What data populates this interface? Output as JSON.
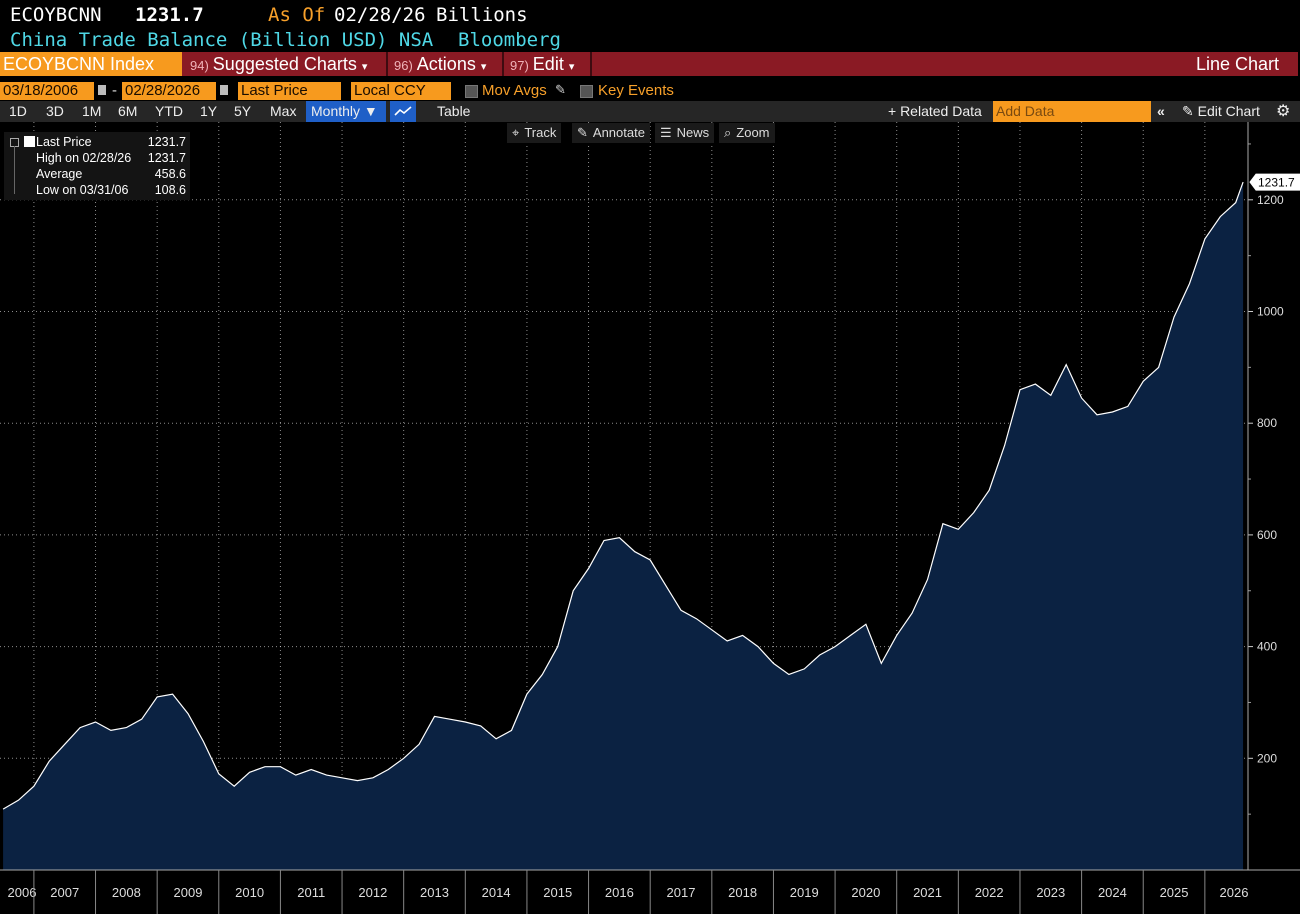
{
  "header": {
    "ticker": "ECOYBCNN",
    "price": "1231.7",
    "as_of_label": "As Of",
    "as_of_date": "02/28/26",
    "units": "Billions",
    "description": "China Trade Balance (Billion USD) NSA",
    "source": "Bloomberg"
  },
  "toolbar": {
    "security": "ECOYBCNN Index",
    "suggested_num": "94)",
    "suggested_label": "Suggested Charts",
    "actions_num": "96)",
    "actions_label": "Actions",
    "edit_num": "97)",
    "edit_label": "Edit",
    "chart_type": "Line Chart"
  },
  "controls": {
    "start_date": "03/18/2006",
    "end_date": "02/28/2026",
    "field": "Last Price",
    "currency": "Local CCY",
    "mov_avgs": "Mov Avgs",
    "key_events": "Key Events"
  },
  "periods": [
    "1D",
    "3D",
    "1M",
    "6M",
    "YTD",
    "1Y",
    "5Y",
    "Max"
  ],
  "frequency": "Monthly ▼",
  "table_label": "Table",
  "related_data": "+ Related Data",
  "add_data_placeholder": "Add Data",
  "edit_chart": "Edit Chart",
  "tools": {
    "track": "Track",
    "annotate": "Annotate",
    "news": "News",
    "zoom": "Zoom"
  },
  "legend": {
    "rows": [
      {
        "label": "Last Price",
        "value": "1231.7"
      },
      {
        "label": "High on 02/28/26",
        "value": "1231.7"
      },
      {
        "label": "Average",
        "value": "458.6"
      },
      {
        "label": "Low on 03/31/06",
        "value": "108.6"
      }
    ]
  },
  "colors": {
    "background": "#000000",
    "area_fill": "#0b2242",
    "line": "#ffffff",
    "accent_orange": "#f79a1e",
    "toolbar_red": "#8a1a24",
    "cyan": "#4fd8e6",
    "active_blue": "#1f5fc7"
  },
  "chart_data": {
    "type": "area",
    "title": "China Trade Balance (Billion USD) NSA",
    "xlabel": "",
    "ylabel": "",
    "ylim": [
      0,
      1300
    ],
    "yticks": [
      200,
      400,
      600,
      800,
      1000,
      1200
    ],
    "x_tick_labels": [
      "2006",
      "2007",
      "2008",
      "2009",
      "2010",
      "2011",
      "2012",
      "2013",
      "2014",
      "2015",
      "2016",
      "2017",
      "2018",
      "2019",
      "2020",
      "2021",
      "2022",
      "2023",
      "2024",
      "2025",
      "2026"
    ],
    "grid": true,
    "last_value_label": "1231.7",
    "series": [
      {
        "name": "Last Price",
        "x": [
          2006.0,
          2006.25,
          2006.5,
          2006.75,
          2007.0,
          2007.25,
          2007.5,
          2007.75,
          2008.0,
          2008.25,
          2008.5,
          2008.75,
          2009.0,
          2009.25,
          2009.5,
          2009.75,
          2010.0,
          2010.25,
          2010.5,
          2010.75,
          2011.0,
          2011.25,
          2011.5,
          2011.75,
          2012.0,
          2012.25,
          2012.5,
          2012.75,
          2013.0,
          2013.25,
          2013.5,
          2013.75,
          2014.0,
          2014.25,
          2014.5,
          2014.75,
          2015.0,
          2015.25,
          2015.5,
          2015.75,
          2016.0,
          2016.25,
          2016.5,
          2016.75,
          2017.0,
          2017.25,
          2017.5,
          2017.75,
          2018.0,
          2018.25,
          2018.5,
          2018.75,
          2019.0,
          2019.25,
          2019.5,
          2019.75,
          2020.0,
          2020.25,
          2020.5,
          2020.75,
          2021.0,
          2021.25,
          2021.5,
          2021.75,
          2022.0,
          2022.25,
          2022.5,
          2022.75,
          2023.0,
          2023.25,
          2023.5,
          2023.75,
          2024.0,
          2024.25,
          2024.5,
          2024.75,
          2025.0,
          2025.25,
          2025.5,
          2025.75,
          2026.0,
          2026.12
        ],
        "values": [
          109,
          125,
          150,
          195,
          225,
          255,
          265,
          250,
          255,
          270,
          310,
          315,
          280,
          230,
          172,
          150,
          175,
          185,
          185,
          170,
          180,
          170,
          165,
          160,
          165,
          180,
          200,
          225,
          275,
          270,
          265,
          258,
          235,
          250,
          315,
          350,
          400,
          500,
          540,
          590,
          595,
          570,
          555,
          510,
          465,
          450,
          430,
          410,
          420,
          400,
          370,
          350,
          360,
          385,
          400,
          420,
          440,
          370,
          420,
          460,
          520,
          620,
          610,
          640,
          680,
          760,
          860,
          870,
          850,
          905,
          845,
          815,
          820,
          830,
          875,
          900,
          990,
          1050,
          1130,
          1170,
          1195,
          1231.7
        ]
      }
    ]
  }
}
